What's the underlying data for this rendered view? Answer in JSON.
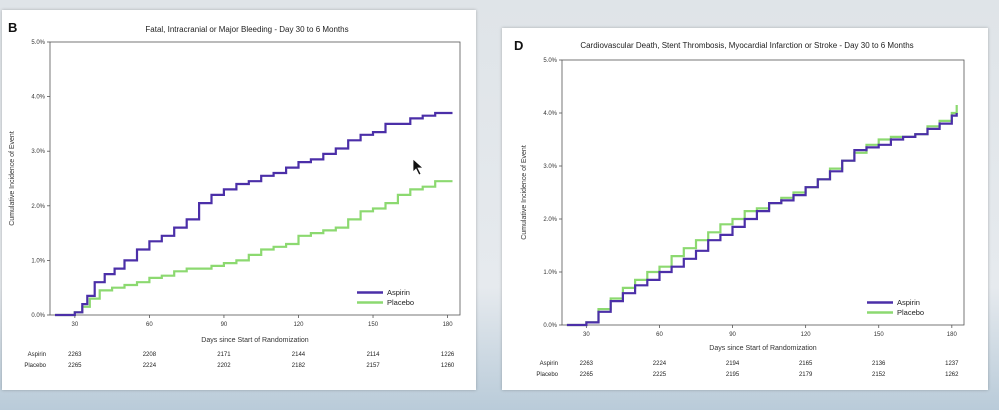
{
  "colors": {
    "aspirin": "#4b2fa8",
    "placeholder_unused": "",
    "placebo": "#8cd970",
    "axis": "#555555"
  },
  "chart_data": [
    {
      "type": "line",
      "panel_letter": "B",
      "title": "Fatal, Intracranial or Major Bleeding - Day 30 to 6 Months",
      "xlabel": "Days since Start of Randomization",
      "ylabel": "Cumulative Incidence of Event",
      "xlim": [
        20,
        185
      ],
      "ylim": [
        0,
        5
      ],
      "x_ticks": [
        30,
        60,
        90,
        120,
        150,
        180
      ],
      "y_ticks": [
        "0.0%",
        "1.0%",
        "2.0%",
        "3.0%",
        "4.0%",
        "5.0%"
      ],
      "y_tick_values": [
        0,
        1,
        2,
        3,
        4,
        5
      ],
      "legend": {
        "position": "bottom-right",
        "entries": [
          "Aspirin",
          "Placebo"
        ]
      },
      "series": [
        {
          "name": "Aspirin",
          "x": [
            22,
            28,
            30,
            33,
            35,
            38,
            42,
            46,
            50,
            55,
            60,
            65,
            70,
            75,
            80,
            85,
            90,
            95,
            100,
            105,
            110,
            115,
            120,
            125,
            130,
            135,
            140,
            145,
            150,
            155,
            160,
            165,
            170,
            175,
            182
          ],
          "y": [
            0,
            0,
            0.05,
            0.2,
            0.35,
            0.6,
            0.75,
            0.85,
            1.0,
            1.2,
            1.35,
            1.45,
            1.6,
            1.75,
            2.05,
            2.2,
            2.3,
            2.4,
            2.45,
            2.55,
            2.6,
            2.7,
            2.8,
            2.85,
            2.95,
            3.05,
            3.2,
            3.3,
            3.35,
            3.5,
            3.5,
            3.6,
            3.65,
            3.7,
            3.7
          ]
        },
        {
          "name": "Placebo",
          "x": [
            22,
            28,
            30,
            33,
            36,
            40,
            45,
            50,
            55,
            60,
            65,
            70,
            75,
            80,
            85,
            90,
            95,
            100,
            105,
            110,
            115,
            120,
            125,
            130,
            135,
            140,
            145,
            150,
            155,
            160,
            165,
            170,
            175,
            182
          ],
          "y": [
            0,
            0,
            0.05,
            0.15,
            0.3,
            0.45,
            0.5,
            0.55,
            0.6,
            0.68,
            0.72,
            0.8,
            0.85,
            0.85,
            0.9,
            0.95,
            1.0,
            1.1,
            1.2,
            1.25,
            1.3,
            1.45,
            1.5,
            1.55,
            1.6,
            1.75,
            1.9,
            1.95,
            2.05,
            2.2,
            2.3,
            2.35,
            2.45,
            2.45
          ]
        }
      ],
      "risk_table": {
        "rows": [
          {
            "label": "Aspirin",
            "values": [
              "2263",
              "2208",
              "2171",
              "2144",
              "2114",
              "1226"
            ]
          },
          {
            "label": "Placebo",
            "values": [
              "2265",
              "2224",
              "2202",
              "2182",
              "2157",
              "1260"
            ]
          }
        ]
      }
    },
    {
      "type": "line",
      "panel_letter": "D",
      "title": "Cardiovascular Death, Stent Thrombosis, Myocardial Infarction or Stroke - Day 30 to 6 Months",
      "xlabel": "Days since Start of Randomization",
      "ylabel": "Cumulative Incidence of Event",
      "xlim": [
        20,
        185
      ],
      "ylim": [
        0,
        5
      ],
      "x_ticks": [
        30,
        60,
        90,
        120,
        150,
        180
      ],
      "y_ticks": [
        "0.0%",
        "1.0%",
        "2.0%",
        "3.0%",
        "4.0%",
        "5.0%"
      ],
      "y_tick_values": [
        0,
        1,
        2,
        3,
        4,
        5
      ],
      "legend": {
        "position": "bottom-right",
        "entries": [
          "Aspirin",
          "Placebo"
        ]
      },
      "series": [
        {
          "name": "Aspirin",
          "x": [
            22,
            28,
            30,
            35,
            40,
            45,
            50,
            55,
            60,
            65,
            70,
            75,
            80,
            85,
            90,
            95,
            100,
            105,
            110,
            115,
            120,
            125,
            130,
            135,
            140,
            145,
            150,
            155,
            160,
            165,
            170,
            175,
            180,
            182
          ],
          "y": [
            0,
            0,
            0.05,
            0.25,
            0.45,
            0.6,
            0.75,
            0.85,
            1.0,
            1.1,
            1.25,
            1.4,
            1.6,
            1.7,
            1.85,
            2.0,
            2.15,
            2.3,
            2.35,
            2.45,
            2.6,
            2.75,
            2.9,
            3.1,
            3.3,
            3.35,
            3.4,
            3.5,
            3.55,
            3.6,
            3.7,
            3.8,
            3.95,
            4.0
          ]
        },
        {
          "name": "Placebo",
          "x": [
            22,
            28,
            30,
            35,
            40,
            45,
            50,
            55,
            60,
            65,
            70,
            75,
            80,
            85,
            90,
            95,
            100,
            105,
            110,
            115,
            120,
            125,
            130,
            135,
            140,
            145,
            150,
            155,
            160,
            165,
            170,
            175,
            180,
            182
          ],
          "y": [
            0,
            0,
            0.05,
            0.3,
            0.5,
            0.7,
            0.85,
            1.0,
            1.1,
            1.3,
            1.45,
            1.6,
            1.75,
            1.9,
            2.0,
            2.15,
            2.2,
            2.3,
            2.4,
            2.5,
            2.6,
            2.75,
            2.95,
            3.1,
            3.25,
            3.4,
            3.5,
            3.55,
            3.55,
            3.6,
            3.75,
            3.85,
            4.0,
            4.15
          ]
        }
      ],
      "risk_table": {
        "rows": [
          {
            "label": "Aspirin",
            "values": [
              "2263",
              "2224",
              "2194",
              "2165",
              "2136",
              "1237"
            ]
          },
          {
            "label": "Placebo",
            "values": [
              "2265",
              "2225",
              "2195",
              "2179",
              "2152",
              "1262"
            ]
          }
        ]
      }
    }
  ]
}
